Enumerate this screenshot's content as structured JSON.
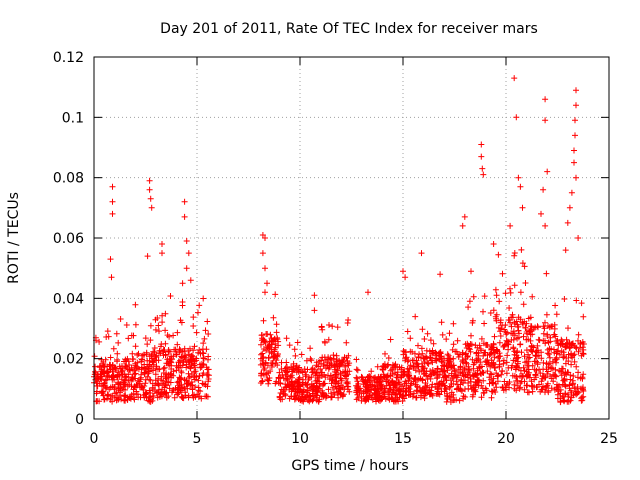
{
  "chart_data": {
    "type": "scatter",
    "title": "Day 201 of 2011, Rate Of TEC Index for receiver mars",
    "xlabel": "GPS time / hours",
    "ylabel": "ROTI / TECUs",
    "xlim": [
      0,
      25
    ],
    "ylim": [
      0,
      0.12
    ],
    "xticks": [
      0,
      5,
      10,
      15,
      20,
      25
    ],
    "xtick_labels": [
      "0",
      "5",
      "10",
      "15",
      "20",
      "25"
    ],
    "yticks": [
      0,
      0.02,
      0.04,
      0.06,
      0.08,
      0.1,
      0.12
    ],
    "ytick_labels": [
      "0",
      "0.02",
      "0.04",
      "0.06",
      "0.08",
      "0.1",
      "0.12"
    ],
    "grid": true,
    "marker": "+",
    "marker_color": "#ff0000",
    "segments": [
      {
        "x_start": 0.0,
        "x_end": 1.0,
        "base": 0.012,
        "spread": 0.009
      },
      {
        "x_start": 1.0,
        "x_end": 2.0,
        "base": 0.013,
        "spread": 0.01
      },
      {
        "x_start": 2.0,
        "x_end": 3.0,
        "base": 0.014,
        "spread": 0.012
      },
      {
        "x_start": 3.0,
        "x_end": 4.0,
        "base": 0.016,
        "spread": 0.013
      },
      {
        "x_start": 4.0,
        "x_end": 5.6,
        "base": 0.015,
        "spread": 0.012
      },
      {
        "x_start": 8.1,
        "x_end": 9.0,
        "base": 0.02,
        "spread": 0.012
      },
      {
        "x_start": 9.0,
        "x_end": 10.0,
        "base": 0.012,
        "spread": 0.008
      },
      {
        "x_start": 10.0,
        "x_end": 11.0,
        "base": 0.011,
        "spread": 0.008
      },
      {
        "x_start": 11.0,
        "x_end": 12.4,
        "base": 0.014,
        "spread": 0.01
      },
      {
        "x_start": 12.7,
        "x_end": 14.0,
        "base": 0.01,
        "spread": 0.006
      },
      {
        "x_start": 14.0,
        "x_end": 15.0,
        "base": 0.012,
        "spread": 0.009
      },
      {
        "x_start": 15.0,
        "x_end": 16.5,
        "base": 0.015,
        "spread": 0.012
      },
      {
        "x_start": 16.5,
        "x_end": 18.0,
        "base": 0.014,
        "spread": 0.012
      },
      {
        "x_start": 18.0,
        "x_end": 19.5,
        "base": 0.016,
        "spread": 0.013
      },
      {
        "x_start": 19.5,
        "x_end": 21.0,
        "base": 0.022,
        "spread": 0.018
      },
      {
        "x_start": 21.0,
        "x_end": 22.5,
        "base": 0.02,
        "spread": 0.016
      },
      {
        "x_start": 22.5,
        "x_end": 23.8,
        "base": 0.016,
        "spread": 0.015
      }
    ],
    "notable_points": [
      {
        "x": 0.9,
        "y": 0.077
      },
      {
        "x": 0.9,
        "y": 0.072
      },
      {
        "x": 0.9,
        "y": 0.068
      },
      {
        "x": 0.8,
        "y": 0.053
      },
      {
        "x": 0.85,
        "y": 0.047
      },
      {
        "x": 2.7,
        "y": 0.079
      },
      {
        "x": 2.7,
        "y": 0.076
      },
      {
        "x": 2.75,
        "y": 0.073
      },
      {
        "x": 2.8,
        "y": 0.07
      },
      {
        "x": 2.6,
        "y": 0.054
      },
      {
        "x": 3.3,
        "y": 0.058
      },
      {
        "x": 3.3,
        "y": 0.055
      },
      {
        "x": 4.4,
        "y": 0.072
      },
      {
        "x": 4.4,
        "y": 0.067
      },
      {
        "x": 4.5,
        "y": 0.059
      },
      {
        "x": 4.6,
        "y": 0.055
      },
      {
        "x": 4.5,
        "y": 0.05
      },
      {
        "x": 4.7,
        "y": 0.046
      },
      {
        "x": 4.3,
        "y": 0.045
      },
      {
        "x": 8.2,
        "y": 0.061
      },
      {
        "x": 8.3,
        "y": 0.06
      },
      {
        "x": 8.2,
        "y": 0.055
      },
      {
        "x": 8.3,
        "y": 0.05
      },
      {
        "x": 8.4,
        "y": 0.045
      },
      {
        "x": 8.3,
        "y": 0.042
      },
      {
        "x": 10.7,
        "y": 0.041
      },
      {
        "x": 10.7,
        "y": 0.036
      },
      {
        "x": 13.3,
        "y": 0.042
      },
      {
        "x": 15.0,
        "y": 0.049
      },
      {
        "x": 15.1,
        "y": 0.047
      },
      {
        "x": 15.9,
        "y": 0.055
      },
      {
        "x": 16.8,
        "y": 0.048
      },
      {
        "x": 17.9,
        "y": 0.064
      },
      {
        "x": 18.0,
        "y": 0.067
      },
      {
        "x": 18.3,
        "y": 0.049
      },
      {
        "x": 18.8,
        "y": 0.091
      },
      {
        "x": 18.8,
        "y": 0.087
      },
      {
        "x": 18.85,
        "y": 0.083
      },
      {
        "x": 18.9,
        "y": 0.081
      },
      {
        "x": 19.4,
        "y": 0.058
      },
      {
        "x": 20.4,
        "y": 0.113
      },
      {
        "x": 20.5,
        "y": 0.1
      },
      {
        "x": 20.6,
        "y": 0.08
      },
      {
        "x": 20.7,
        "y": 0.077
      },
      {
        "x": 20.2,
        "y": 0.064
      },
      {
        "x": 20.8,
        "y": 0.07
      },
      {
        "x": 21.9,
        "y": 0.106
      },
      {
        "x": 21.9,
        "y": 0.099
      },
      {
        "x": 22.0,
        "y": 0.082
      },
      {
        "x": 21.8,
        "y": 0.076
      },
      {
        "x": 21.7,
        "y": 0.068
      },
      {
        "x": 21.9,
        "y": 0.064
      },
      {
        "x": 23.4,
        "y": 0.109
      },
      {
        "x": 23.4,
        "y": 0.104
      },
      {
        "x": 23.35,
        "y": 0.099
      },
      {
        "x": 23.35,
        "y": 0.094
      },
      {
        "x": 23.3,
        "y": 0.089
      },
      {
        "x": 23.3,
        "y": 0.085
      },
      {
        "x": 23.4,
        "y": 0.08
      },
      {
        "x": 23.2,
        "y": 0.075
      },
      {
        "x": 23.1,
        "y": 0.07
      },
      {
        "x": 23.0,
        "y": 0.065
      },
      {
        "x": 23.5,
        "y": 0.06
      },
      {
        "x": 22.9,
        "y": 0.056
      }
    ]
  }
}
